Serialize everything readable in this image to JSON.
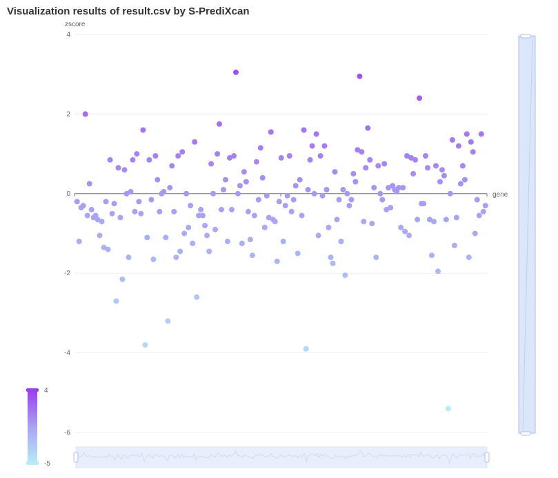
{
  "title": "Visualization results of result.csv by S-PrediXcan",
  "colors": {
    "high": "#9b3ff0",
    "mid": "#a9a3f2",
    "low": "#b6ecf6",
    "slider_fill": "#dbe6fb",
    "slider_border": "#a9bfe8"
  },
  "visual_map": {
    "max_label": "4",
    "min_label": "-5"
  },
  "chart_data": {
    "type": "scatter",
    "title": "Visualization results of result.csv by S-PrediXcan",
    "xlabel": "gene",
    "ylabel": "zscore",
    "ylim": [
      -6,
      4
    ],
    "y_ticks": [
      "4",
      "2",
      "0",
      "-2",
      "-4",
      "-6"
    ],
    "y_tick_values": [
      4,
      2,
      0,
      -2,
      -4,
      -6
    ],
    "grid": true,
    "color_scale": {
      "min": -5,
      "max": 4
    },
    "x_category_count": 400,
    "points": [
      [
        2,
        -0.2
      ],
      [
        4,
        -1.2
      ],
      [
        6,
        -0.35
      ],
      [
        8,
        -0.3
      ],
      [
        10,
        2.0
      ],
      [
        12,
        -0.55
      ],
      [
        14,
        0.25
      ],
      [
        16,
        -0.4
      ],
      [
        18,
        -0.6
      ],
      [
        20,
        -0.55
      ],
      [
        22,
        -0.65
      ],
      [
        24,
        -1.05
      ],
      [
        26,
        -0.7
      ],
      [
        28,
        -1.35
      ],
      [
        30,
        -0.2
      ],
      [
        32,
        -1.4
      ],
      [
        34,
        0.85
      ],
      [
        36,
        -0.5
      ],
      [
        38,
        -0.25
      ],
      [
        40,
        -2.7
      ],
      [
        42,
        0.65
      ],
      [
        44,
        -0.6
      ],
      [
        46,
        -2.15
      ],
      [
        48,
        0.6
      ],
      [
        50,
        0.0
      ],
      [
        52,
        -1.6
      ],
      [
        54,
        0.05
      ],
      [
        56,
        0.85
      ],
      [
        58,
        -0.45
      ],
      [
        60,
        1.0
      ],
      [
        62,
        -0.2
      ],
      [
        64,
        -0.5
      ],
      [
        66,
        1.6
      ],
      [
        68,
        -3.8
      ],
      [
        70,
        -1.1
      ],
      [
        72,
        0.85
      ],
      [
        74,
        -0.15
      ],
      [
        76,
        -1.65
      ],
      [
        78,
        0.95
      ],
      [
        80,
        0.35
      ],
      [
        82,
        -0.45
      ],
      [
        84,
        0.0
      ],
      [
        86,
        0.05
      ],
      [
        88,
        -1.1
      ],
      [
        90,
        -3.2
      ],
      [
        92,
        0.15
      ],
      [
        94,
        0.7
      ],
      [
        96,
        -0.45
      ],
      [
        98,
        -1.6
      ],
      [
        100,
        0.95
      ],
      [
        102,
        -1.45
      ],
      [
        104,
        1.05
      ],
      [
        106,
        -1.0
      ],
      [
        108,
        0.0
      ],
      [
        110,
        -0.85
      ],
      [
        112,
        -0.3
      ],
      [
        114,
        -1.25
      ],
      [
        116,
        1.3
      ],
      [
        118,
        -2.6
      ],
      [
        120,
        -0.55
      ],
      [
        122,
        -0.4
      ],
      [
        124,
        -0.55
      ],
      [
        126,
        -0.8
      ],
      [
        128,
        -1.05
      ],
      [
        130,
        -1.45
      ],
      [
        132,
        0.75
      ],
      [
        134,
        0.0
      ],
      [
        136,
        -0.9
      ],
      [
        138,
        1.0
      ],
      [
        140,
        1.75
      ],
      [
        142,
        -0.4
      ],
      [
        144,
        0.1
      ],
      [
        146,
        0.35
      ],
      [
        148,
        -1.2
      ],
      [
        150,
        0.9
      ],
      [
        152,
        -0.4
      ],
      [
        154,
        0.95
      ],
      [
        156,
        3.05
      ],
      [
        158,
        0.0
      ],
      [
        160,
        0.2
      ],
      [
        162,
        -1.25
      ],
      [
        164,
        0.55
      ],
      [
        166,
        0.3
      ],
      [
        168,
        -0.45
      ],
      [
        170,
        -1.15
      ],
      [
        172,
        -1.55
      ],
      [
        174,
        -0.55
      ],
      [
        176,
        0.8
      ],
      [
        178,
        -0.15
      ],
      [
        180,
        1.15
      ],
      [
        182,
        0.4
      ],
      [
        184,
        -0.85
      ],
      [
        186,
        -0.05
      ],
      [
        188,
        -0.6
      ],
      [
        190,
        1.55
      ],
      [
        192,
        -0.65
      ],
      [
        194,
        -0.7
      ],
      [
        196,
        -1.7
      ],
      [
        198,
        -0.2
      ],
      [
        200,
        0.9
      ],
      [
        202,
        -1.2
      ],
      [
        204,
        -0.3
      ],
      [
        206,
        -0.05
      ],
      [
        208,
        0.95
      ],
      [
        210,
        -0.45
      ],
      [
        212,
        -0.15
      ],
      [
        214,
        0.2
      ],
      [
        216,
        -1.5
      ],
      [
        218,
        0.35
      ],
      [
        220,
        -0.55
      ],
      [
        222,
        1.6
      ],
      [
        224,
        -3.9
      ],
      [
        226,
        0.1
      ],
      [
        228,
        0.85
      ],
      [
        230,
        1.2
      ],
      [
        232,
        0.0
      ],
      [
        234,
        1.5
      ],
      [
        236,
        -1.05
      ],
      [
        238,
        0.95
      ],
      [
        240,
        -0.05
      ],
      [
        242,
        1.2
      ],
      [
        244,
        0.1
      ],
      [
        246,
        -0.85
      ],
      [
        248,
        -1.6
      ],
      [
        250,
        -1.75
      ],
      [
        252,
        0.55
      ],
      [
        254,
        -0.65
      ],
      [
        256,
        -0.15
      ],
      [
        258,
        -1.2
      ],
      [
        260,
        0.1
      ],
      [
        262,
        -2.05
      ],
      [
        264,
        0.0
      ],
      [
        266,
        -0.3
      ],
      [
        268,
        -0.15
      ],
      [
        270,
        0.5
      ],
      [
        272,
        0.3
      ],
      [
        274,
        1.1
      ],
      [
        276,
        2.95
      ],
      [
        278,
        1.05
      ],
      [
        280,
        -0.7
      ],
      [
        282,
        0.65
      ],
      [
        284,
        1.65
      ],
      [
        286,
        0.85
      ],
      [
        288,
        -0.75
      ],
      [
        290,
        0.15
      ],
      [
        292,
        -1.6
      ],
      [
        294,
        0.7
      ],
      [
        296,
        0.0
      ],
      [
        298,
        -0.15
      ],
      [
        300,
        0.75
      ],
      [
        302,
        -0.4
      ],
      [
        304,
        0.15
      ],
      [
        306,
        -0.35
      ],
      [
        308,
        0.2
      ],
      [
        310,
        0.1
      ],
      [
        312,
        0.05
      ],
      [
        314,
        0.15
      ],
      [
        316,
        -0.85
      ],
      [
        318,
        0.15
      ],
      [
        320,
        -0.95
      ],
      [
        322,
        0.95
      ],
      [
        324,
        -1.05
      ],
      [
        326,
        0.9
      ],
      [
        328,
        0.5
      ],
      [
        330,
        0.85
      ],
      [
        332,
        -0.65
      ],
      [
        334,
        2.4
      ],
      [
        336,
        -0.25
      ],
      [
        338,
        -0.25
      ],
      [
        340,
        0.95
      ],
      [
        342,
        0.65
      ],
      [
        344,
        -0.65
      ],
      [
        346,
        -1.55
      ],
      [
        348,
        -0.7
      ],
      [
        350,
        0.7
      ],
      [
        352,
        -1.95
      ],
      [
        354,
        0.3
      ],
      [
        356,
        0.6
      ],
      [
        358,
        0.45
      ],
      [
        360,
        -0.65
      ],
      [
        362,
        -5.4
      ],
      [
        364,
        0.0
      ],
      [
        366,
        1.35
      ],
      [
        368,
        -1.3
      ],
      [
        370,
        -0.6
      ],
      [
        372,
        1.2
      ],
      [
        374,
        0.25
      ],
      [
        376,
        0.7
      ],
      [
        378,
        0.35
      ],
      [
        380,
        1.5
      ],
      [
        382,
        -1.6
      ],
      [
        384,
        1.3
      ],
      [
        386,
        1.05
      ],
      [
        388,
        -1.0
      ],
      [
        390,
        -0.15
      ],
      [
        392,
        -0.55
      ],
      [
        394,
        1.5
      ],
      [
        396,
        -0.45
      ],
      [
        398,
        -0.3
      ]
    ]
  },
  "dataZoom": {
    "orientation_bottom": "horizontal",
    "orientation_right": "vertical",
    "start": 0,
    "end": 100
  }
}
